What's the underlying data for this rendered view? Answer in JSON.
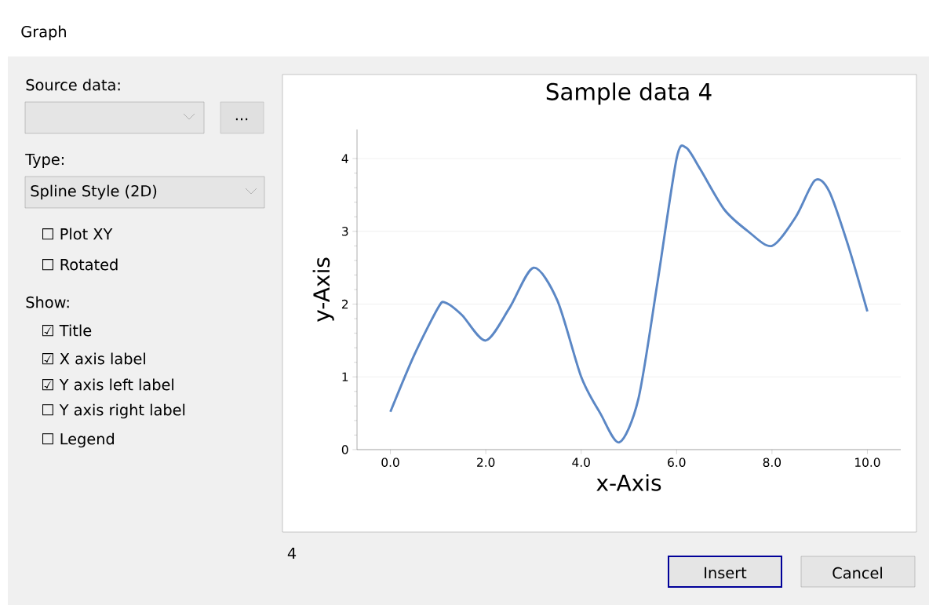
{
  "chart_data": {
    "type": "line",
    "title": "Sample data 4",
    "xlabel": "x-Axis",
    "ylabel": "y-Axis",
    "x": [
      0,
      0.5,
      1.0,
      1.15,
      1.5,
      2.0,
      2.5,
      3.0,
      3.5,
      4.0,
      4.4,
      4.8,
      5.2,
      5.6,
      6.0,
      6.2,
      6.5,
      7.0,
      7.5,
      8.0,
      8.5,
      8.9,
      9.2,
      9.6,
      10.0
    ],
    "series": [
      {
        "color": "#5b87c5",
        "values": [
          0.52,
          1.3,
          1.95,
          2.02,
          1.85,
          1.5,
          1.95,
          2.5,
          2.05,
          1.0,
          0.5,
          0.1,
          0.7,
          2.3,
          4.0,
          4.15,
          3.85,
          3.3,
          3.0,
          2.8,
          3.2,
          3.7,
          3.55,
          2.8,
          1.9
        ]
      }
    ],
    "xlim": [
      -0.7,
      10.7
    ],
    "ylim": [
      0,
      4.4
    ],
    "xticks": [
      {
        "value": 0,
        "label": "0.0"
      },
      {
        "value": 2,
        "label": "2.0"
      },
      {
        "value": 4,
        "label": "4.0"
      },
      {
        "value": 6,
        "label": "6.0"
      },
      {
        "value": 8,
        "label": "8.0"
      },
      {
        "value": 10,
        "label": "10.0"
      }
    ],
    "yticks": [
      0,
      1,
      2,
      3,
      4
    ],
    "grid": "y",
    "marker": "none",
    "annotations": [
      "Graph",
      "Source data:",
      "...",
      "Type:",
      "Spline Style (2D)",
      "☐ Plot XY",
      "☐ Rotated",
      "Show:",
      "☑ Title",
      "☑ X axis label",
      "☑ Y axis left label",
      "☐ Y axis right label",
      "☐ Legend",
      "4",
      "Insert",
      "Cancel"
    ]
  }
}
